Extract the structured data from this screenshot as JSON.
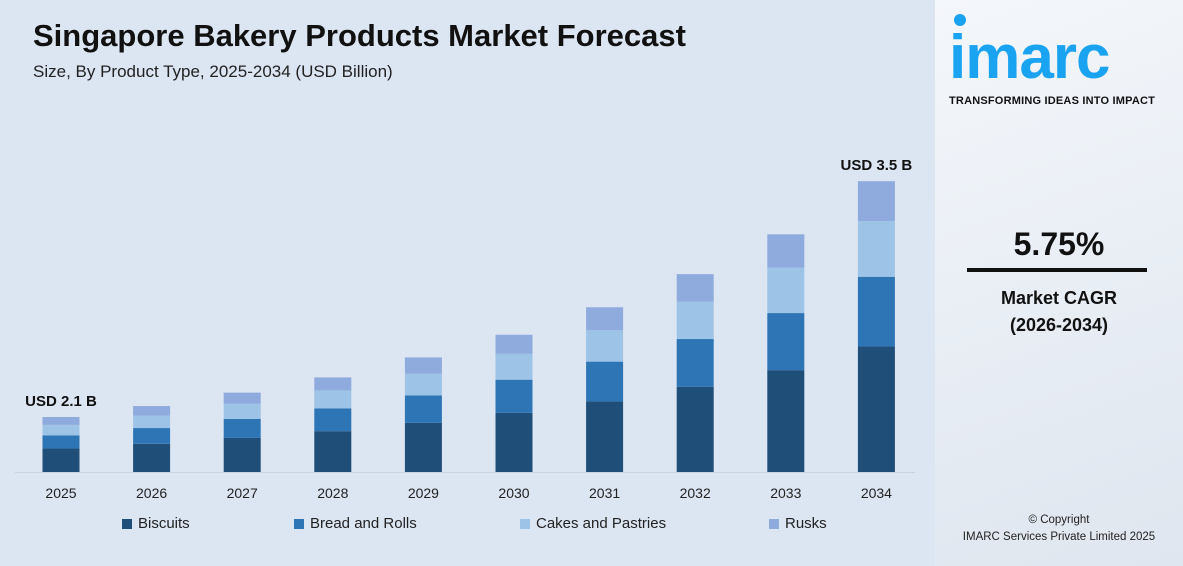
{
  "chart_data": {
    "type": "bar",
    "stacked": true,
    "title": "Singapore Bakery Products Market Forecast",
    "subtitle": "Size, By Product Type, 2025-2034 (USD Billion)",
    "categories": [
      "2025",
      "2026",
      "2027",
      "2028",
      "2029",
      "2030",
      "2031",
      "2032",
      "2033",
      "2034"
    ],
    "series": [
      {
        "name": "Biscuits",
        "color": "#1f4e79",
        "values": [
          0.9,
          0.95,
          1.01,
          1.07,
          1.13,
          1.2,
          1.26,
          1.34,
          1.41,
          1.51
        ]
      },
      {
        "name": "Bread and Rolls",
        "color": "#2e75b6",
        "values": [
          0.5,
          0.53,
          0.56,
          0.6,
          0.63,
          0.67,
          0.71,
          0.75,
          0.79,
          0.84
        ]
      },
      {
        "name": "Cakes and Pastries",
        "color": "#9dc3e6",
        "values": [
          0.4,
          0.42,
          0.45,
          0.47,
          0.5,
          0.53,
          0.56,
          0.59,
          0.63,
          0.67
        ]
      },
      {
        "name": "Rusks",
        "color": "#8faadc",
        "values": [
          0.3,
          0.32,
          0.33,
          0.34,
          0.37,
          0.38,
          0.41,
          0.43,
          0.46,
          0.48
        ]
      }
    ],
    "annotations": [
      {
        "category": "2025",
        "text": "USD 2.1 B"
      },
      {
        "category": "2034",
        "text": "USD 3.5 B"
      }
    ],
    "legend_position": "bottom",
    "grid": false,
    "y_axis_shown": false
  },
  "side": {
    "logo": "imarc",
    "tagline": "TRANSFORMING IDEAS INTO IMPACT",
    "cagr_value": "5.75%",
    "cagr_label": "Market CAGR",
    "cagr_period": "(2026-2034)",
    "copyright": "© Copyright",
    "company": "IMARC Services Private Limited 2025"
  }
}
